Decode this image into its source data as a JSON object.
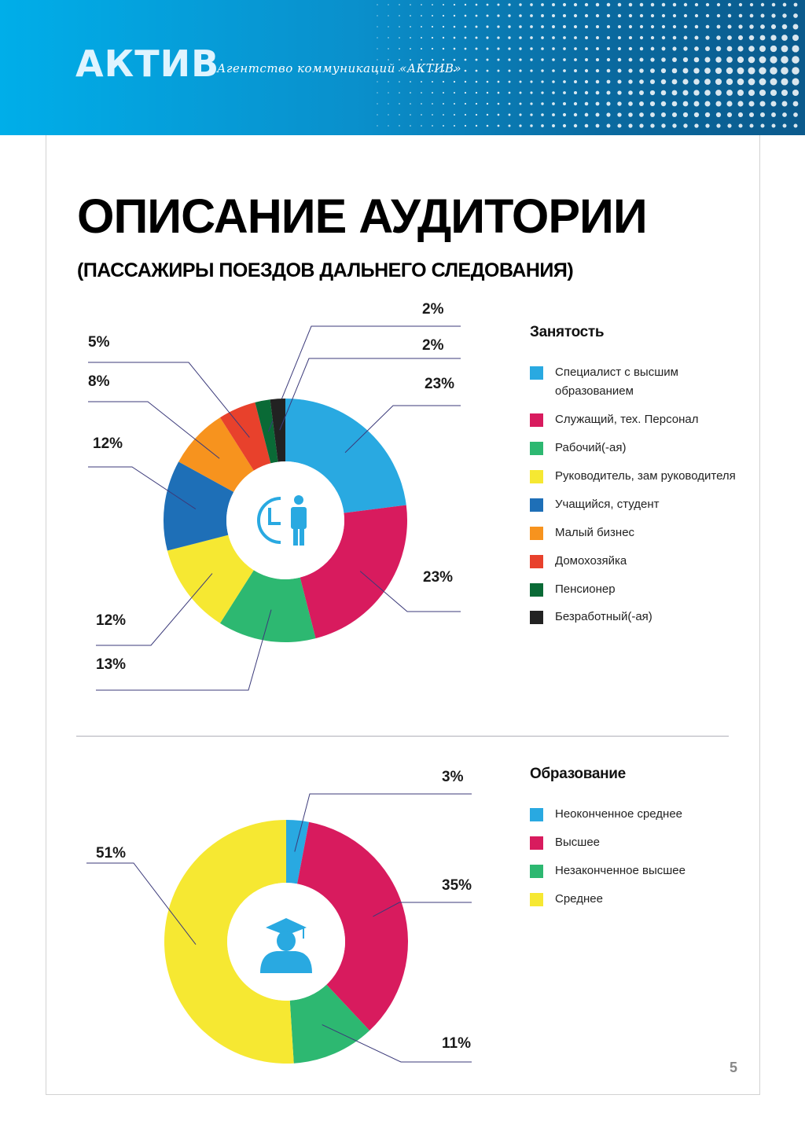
{
  "header": {
    "logo_text": "АКТИВ",
    "tagline": "Агентство коммуникаций «АКТИВ»"
  },
  "page": {
    "title": "ОПИСАНИЕ АУДИТОРИИ",
    "subtitle": "(ПАССАЖИРЫ ПОЕЗДОВ ДАЛЬНЕГО СЛЕДОВАНИЯ)",
    "number": "5"
  },
  "chart_data": [
    {
      "type": "pie",
      "title": "Занятость",
      "center_icon": "clock-person-icon",
      "categories": [
        "Специалист с высшим образованием",
        "Служащий, тех. Персонал",
        "Рабочий(-ая)",
        "Руководитель, зам руководителя",
        "Учащийся, студент",
        "Малый бизнес",
        "Домохозяйка",
        "Пенсионер",
        "Безработный(-ая)"
      ],
      "values": [
        23,
        23,
        13,
        12,
        12,
        8,
        5,
        2,
        2
      ],
      "labels": [
        "23%",
        "23%",
        "13%",
        "12%",
        "12%",
        "8%",
        "5%",
        "2%",
        "2%"
      ],
      "colors": [
        "#29a9e1",
        "#d81b5e",
        "#2db871",
        "#f6e832",
        "#1e6fb7",
        "#f7931e",
        "#e8412c",
        "#0a6a36",
        "#222222"
      ],
      "legend_position": "right"
    },
    {
      "type": "pie",
      "title": "Образование",
      "center_icon": "graduate-icon",
      "categories": [
        "Неоконченное среднее",
        "Высшее",
        "Незаконченное высшее",
        "Среднее"
      ],
      "values": [
        3,
        35,
        11,
        51
      ],
      "labels": [
        "3%",
        "35%",
        "11%",
        "51%"
      ],
      "colors": [
        "#29a9e1",
        "#d81b5e",
        "#2db871",
        "#f6e832"
      ],
      "legend_position": "right"
    }
  ]
}
